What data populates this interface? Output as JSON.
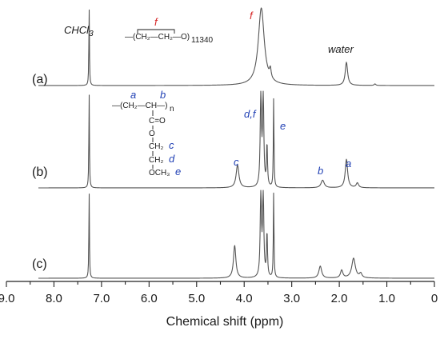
{
  "chart_data": {
    "type": "line",
    "title": "",
    "xlabel": "Chemical shift (ppm)",
    "ylabel": "",
    "xlim": [
      9.0,
      0
    ],
    "x_reversed": true,
    "xticks": [
      "9.0",
      "8.0",
      "7.0",
      "6.0",
      "5.0",
      "4.0",
      "3.0",
      "2.0",
      "1.0",
      "0"
    ],
    "grid": false,
    "series": [
      {
        "name": "(a)",
        "peaks": [
          {
            "shift": 7.26,
            "height": 1.0
          },
          {
            "shift": 3.64,
            "height": 1.0
          },
          {
            "shift": 3.45,
            "height": 0.12
          },
          {
            "shift": 1.85,
            "height": 0.3
          },
          {
            "shift": 1.25,
            "height": 0.02
          }
        ]
      },
      {
        "name": "(b)",
        "peaks": [
          {
            "shift": 7.26,
            "height": 1.0
          },
          {
            "shift": 4.14,
            "height": 0.24
          },
          {
            "shift": 3.65,
            "height": 1.0
          },
          {
            "shift": 3.6,
            "height": 1.0
          },
          {
            "shift": 3.52,
            "height": 0.45
          },
          {
            "shift": 3.38,
            "height": 0.95
          },
          {
            "shift": 2.35,
            "height": 0.08
          },
          {
            "shift": 1.85,
            "height": 0.3
          },
          {
            "shift": 1.62,
            "height": 0.05
          }
        ]
      },
      {
        "name": "(c)",
        "peaks": [
          {
            "shift": 7.26,
            "height": 1.0
          },
          {
            "shift": 4.2,
            "height": 0.38
          },
          {
            "shift": 3.65,
            "height": 1.0
          },
          {
            "shift": 3.6,
            "height": 1.0
          },
          {
            "shift": 3.52,
            "height": 0.52
          },
          {
            "shift": 3.38,
            "height": 1.0
          },
          {
            "shift": 2.4,
            "height": 0.14
          },
          {
            "shift": 1.95,
            "height": 0.09
          },
          {
            "shift": 1.7,
            "height": 0.23
          },
          {
            "shift": 1.55,
            "height": 0.05
          }
        ]
      }
    ],
    "annotations": [
      {
        "text": "CHCl3",
        "trace": "(a)",
        "shift": 7.26,
        "color": "#000000"
      },
      {
        "text": "f",
        "trace": "(a)",
        "shift": 3.7,
        "color": "#d62728"
      },
      {
        "text": "water",
        "trace": "(a)",
        "shift": 1.85,
        "color": "#000000"
      },
      {
        "text": "d,f",
        "trace": "(b)",
        "shift": 3.65,
        "color": "#1f3fb4"
      },
      {
        "text": "e",
        "trace": "(b)",
        "shift": 3.38,
        "color": "#1f3fb4"
      },
      {
        "text": "c",
        "trace": "(b)",
        "shift": 4.14,
        "color": "#1f3fb4"
      },
      {
        "text": "b",
        "trace": "(b)",
        "shift": 2.35,
        "color": "#1f3fb4"
      },
      {
        "text": "a",
        "trace": "(b)",
        "shift": 1.8,
        "color": "#1f3fb4"
      }
    ]
  },
  "structures": {
    "peo": {
      "label_f": "f",
      "formula": "—(CH₂—CH₂—O)",
      "subscript": "11340"
    },
    "polymer": {
      "label_a": "a",
      "label_b": "b",
      "backbone": "—(CH₂—CH—)",
      "subscript_n": "n",
      "carbonyl": "C=O",
      "ester_o": "O",
      "ch2_c": "CH₂",
      "label_c": "c",
      "ch2_d": "CH₂",
      "label_d": "d",
      "och3": "OCH₃",
      "label_e": "e"
    }
  },
  "colors": {
    "trace": "#555555",
    "red": "#d62728",
    "blue": "#1f3fb4"
  }
}
